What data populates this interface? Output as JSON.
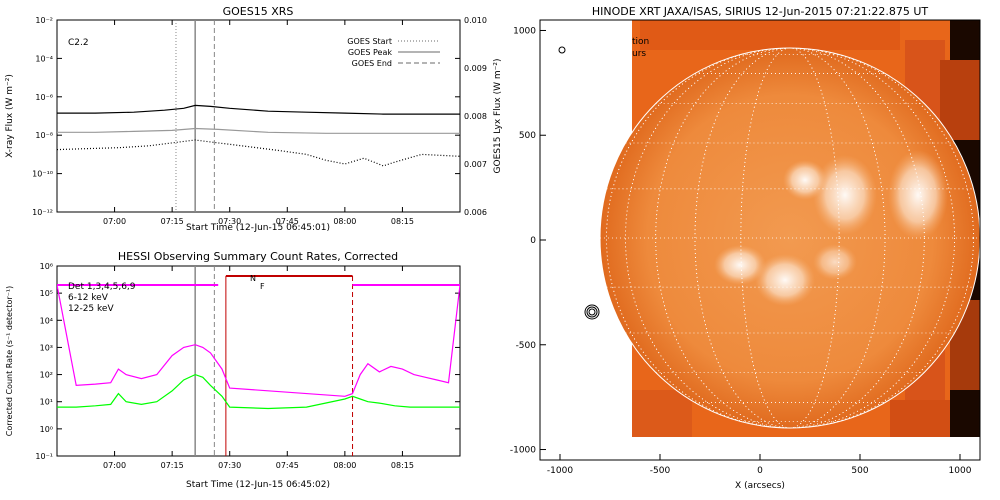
{
  "chart_data": [
    {
      "type": "line",
      "title": "GOES15 XRS",
      "annotation": "C2.2",
      "xlabel": "Start Time (12-Jun-15 06:45:01)",
      "ylabel": "X-ray Flux (W m⁻²)",
      "y2label": "GOES15 Lyx Flux (W m⁻²)",
      "x_tick_labels": [
        "07:00",
        "07:15",
        "07:30",
        "07:45",
        "08:00",
        "08:15"
      ],
      "x_tick_minutes": [
        15,
        30,
        45,
        60,
        75,
        90
      ],
      "xlim_minutes": [
        0,
        105
      ],
      "y_scale": "log",
      "ylim_exp": [
        -12,
        -2
      ],
      "y_tick_labels": [
        "10⁻¹²",
        "10⁻¹⁰",
        "10⁻⁸",
        "10⁻⁶",
        "10⁻⁴",
        "10⁻²"
      ],
      "y2_tick_labels": [
        "0.006",
        "0.007",
        "0.008",
        "0.009",
        "0.010"
      ],
      "y2lim": [
        0.006,
        0.01
      ],
      "legend": {
        "placement": "top-right",
        "entries": [
          {
            "label": "GOES Start",
            "style": "dotted"
          },
          {
            "label": "GOES Peak",
            "style": "solid"
          },
          {
            "label": "GOES End",
            "style": "dashed"
          }
        ]
      },
      "markers_minutes": {
        "start": 31,
        "peak": 36,
        "end": 41
      },
      "series": [
        {
          "color": "#000000",
          "style": "solid",
          "x": [
            0,
            10,
            20,
            28,
            33,
            36,
            40,
            45,
            55,
            65,
            75,
            85,
            95,
            105
          ],
          "y_exp": [
            -6.85,
            -6.85,
            -6.8,
            -6.7,
            -6.6,
            -6.45,
            -6.5,
            -6.6,
            -6.75,
            -6.8,
            -6.85,
            -6.9,
            -6.9,
            -6.9
          ]
        },
        {
          "color": "#999999",
          "style": "solid",
          "x": [
            0,
            10,
            20,
            30,
            36,
            42,
            55,
            70,
            85,
            105
          ],
          "y_exp": [
            -7.85,
            -7.85,
            -7.8,
            -7.75,
            -7.65,
            -7.7,
            -7.85,
            -7.9,
            -7.9,
            -7.9
          ]
        },
        {
          "color": "#000000",
          "style": "dotted",
          "x": [
            0,
            8,
            16,
            24,
            30,
            36,
            42,
            50,
            58,
            65,
            70,
            75,
            80,
            85,
            88,
            95,
            105
          ],
          "y_exp": [
            -8.75,
            -8.7,
            -8.65,
            -8.55,
            -8.4,
            -8.25,
            -8.4,
            -8.6,
            -8.8,
            -9.0,
            -9.3,
            -9.5,
            -9.2,
            -9.6,
            -9.4,
            -9.0,
            -9.1
          ]
        }
      ]
    },
    {
      "type": "line",
      "title": "HESSI Observing Summary Count Rates, Corrected",
      "xlabel": "Start Time (12-Jun-15 06:45:02)",
      "ylabel": "Corrected Count Rate (s⁻¹ detector⁻¹)",
      "x_tick_labels": [
        "07:00",
        "07:15",
        "07:30",
        "07:45",
        "08:00",
        "08:15"
      ],
      "x_tick_minutes": [
        15,
        30,
        45,
        60,
        75,
        90
      ],
      "xlim_minutes": [
        0,
        105
      ],
      "y_scale": "log",
      "ylim_exp": [
        -1,
        6
      ],
      "y_tick_labels": [
        "10⁻¹",
        "10⁰",
        "10¹",
        "10²",
        "10³",
        "10⁴",
        "10⁵",
        "10⁶"
      ],
      "legend": {
        "placement": "top-left",
        "entries": [
          {
            "label": "Det 1,3,4,5,6,9",
            "color": "#000000"
          },
          {
            "label": "6-12 keV",
            "color": "#ff00ff"
          },
          {
            "label": "12-25 keV",
            "color": "#00ff00"
          }
        ]
      },
      "annotations": [
        "N",
        "F"
      ],
      "markers_minutes": {
        "peak": 36,
        "end": 41,
        "night_start": 44,
        "night_end": 77
      },
      "series": [
        {
          "name": "6-12 keV",
          "color": "#ff00ff",
          "x": [
            0,
            5,
            10,
            14,
            16,
            18,
            22,
            26,
            30,
            33,
            36,
            38,
            40,
            43,
            45,
            75,
            77,
            79,
            81,
            84,
            87,
            90,
            93,
            96,
            99,
            102,
            105
          ],
          "y_exp": [
            5.3,
            1.6,
            1.65,
            1.7,
            2.2,
            2.0,
            1.85,
            2.0,
            2.7,
            3.0,
            3.1,
            3.0,
            2.8,
            2.2,
            1.5,
            1.2,
            1.3,
            2.0,
            2.4,
            2.1,
            2.3,
            2.2,
            2.0,
            1.9,
            1.8,
            1.7,
            5.3
          ]
        },
        {
          "name": "12-25 keV",
          "color": "#00ff00",
          "x": [
            0,
            5,
            10,
            14,
            16,
            18,
            22,
            26,
            30,
            33,
            36,
            38,
            40,
            43,
            45,
            55,
            65,
            75,
            77,
            79,
            81,
            84,
            88,
            92,
            96,
            100,
            105
          ],
          "y_exp": [
            0.8,
            0.8,
            0.85,
            0.9,
            1.3,
            1.0,
            0.9,
            1.0,
            1.4,
            1.8,
            2.0,
            1.9,
            1.6,
            1.2,
            0.8,
            0.75,
            0.8,
            1.1,
            1.2,
            1.1,
            1.0,
            0.95,
            0.85,
            0.8,
            0.8,
            0.8,
            0.8
          ]
        }
      ],
      "attenuator_level_exp": 5.3
    },
    {
      "type": "heatmap",
      "title": "HINODE XRT JAXA/ISAS, SIRIUS 12-Jun-2015 07:21:22.875 UT",
      "xlabel": "X (arcsecs)",
      "x_tick_labels": [
        "-1000",
        "-500",
        "0",
        "500",
        "1000"
      ],
      "y_tick_labels": [
        "-1000",
        "-500",
        "0",
        "500",
        "1000"
      ],
      "xlim": [
        -1100,
        1100
      ],
      "ylim": [
        -1050,
        1050
      ],
      "overlay_text": [
        "tion",
        "urs"
      ]
    }
  ]
}
